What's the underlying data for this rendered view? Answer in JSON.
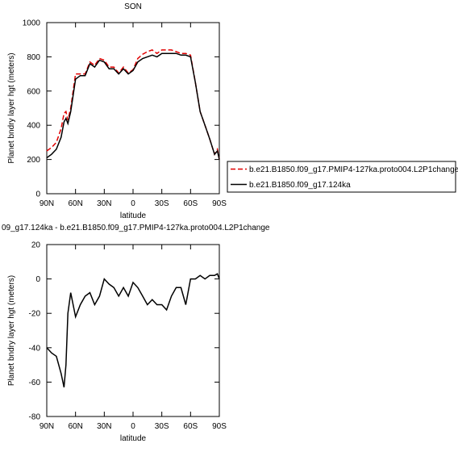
{
  "chart_data": [
    {
      "type": "line",
      "title": "SON",
      "xlabel": "latitude",
      "ylabel": "Planet bndry layer hgt (meters)",
      "x": [
        90,
        85,
        80,
        75,
        72,
        70,
        68,
        65,
        60,
        55,
        50,
        45,
        40,
        35,
        30,
        25,
        20,
        15,
        10,
        5,
        0,
        -5,
        -10,
        -15,
        -20,
        -25,
        -30,
        -35,
        -40,
        -45,
        -50,
        -55,
        -60,
        -65,
        -70,
        -75,
        -80,
        -85,
        -88,
        -90
      ],
      "series": [
        {
          "name": "b.e21.B1850.f09_g17.PMIP4-127ka.proto004.L2P1change",
          "color": "#e00000",
          "dash": true,
          "values": [
            250,
            270,
            300,
            380,
            470,
            480,
            430,
            500,
            700,
            700,
            700,
            770,
            750,
            790,
            780,
            740,
            740,
            705,
            740,
            705,
            725,
            790,
            815,
            830,
            840,
            820,
            840,
            840,
            840,
            830,
            820,
            820,
            810,
            650,
            480,
            400,
            320,
            230,
            260,
            200
          ]
        },
        {
          "name": "b.e21.B1850.f09_g17.124ka",
          "color": "#000000",
          "dash": false,
          "values": [
            210,
            230,
            260,
            330,
            420,
            440,
            410,
            480,
            670,
            690,
            690,
            760,
            740,
            780,
            770,
            730,
            730,
            700,
            730,
            700,
            720,
            770,
            790,
            800,
            810,
            800,
            820,
            820,
            820,
            820,
            810,
            810,
            800,
            650,
            480,
            400,
            320,
            230,
            250,
            200
          ]
        }
      ],
      "xlim": [
        90,
        -90
      ],
      "xticks": [
        {
          "value": 90,
          "label": "90N"
        },
        {
          "value": 60,
          "label": "60N"
        },
        {
          "value": 30,
          "label": "30N"
        },
        {
          "value": 0,
          "label": "0"
        },
        {
          "value": -30,
          "label": "30S"
        },
        {
          "value": -60,
          "label": "60S"
        },
        {
          "value": -90,
          "label": "90S"
        }
      ],
      "ylim": [
        0,
        1000
      ],
      "yticks": [
        0,
        200,
        400,
        600,
        800,
        1000
      ],
      "legend": "outside-right"
    },
    {
      "type": "line",
      "title": "09_g17.124ka - b.e21.B1850.f09_g17.PMIP4-127ka.proto004.L2P1change",
      "xlabel": "latitude",
      "ylabel": "Planet bndry layer hgt (meters)",
      "x": [
        90,
        85,
        80,
        75,
        72,
        70,
        68,
        65,
        60,
        55,
        50,
        45,
        40,
        35,
        30,
        25,
        20,
        15,
        10,
        5,
        0,
        -5,
        -10,
        -15,
        -20,
        -25,
        -30,
        -35,
        -40,
        -45,
        -50,
        -55,
        -60,
        -65,
        -70,
        -75,
        -80,
        -85,
        -88,
        -90
      ],
      "series": [
        {
          "color": "#000000",
          "dash": false,
          "values": [
            -40,
            -43,
            -45,
            -55,
            -63,
            -50,
            -20,
            -8,
            -22,
            -15,
            -10,
            -8,
            -15,
            -10,
            0,
            -3,
            -5,
            -10,
            -5,
            -10,
            -2,
            -5,
            -10,
            -15,
            -12,
            -15,
            -15,
            -18,
            -10,
            -5,
            -5,
            -15,
            0,
            0,
            2,
            0,
            2,
            2,
            3,
            0
          ]
        }
      ],
      "xlim": [
        90,
        -90
      ],
      "xticks": [
        {
          "value": 90,
          "label": "90N"
        },
        {
          "value": 60,
          "label": "60N"
        },
        {
          "value": 30,
          "label": "30N"
        },
        {
          "value": 0,
          "label": "0"
        },
        {
          "value": -30,
          "label": "30S"
        },
        {
          "value": -60,
          "label": "60S"
        },
        {
          "value": -90,
          "label": "90S"
        }
      ],
      "ylim": [
        -80,
        20
      ],
      "yticks": [
        -80,
        -60,
        -40,
        -20,
        0,
        20
      ]
    }
  ]
}
